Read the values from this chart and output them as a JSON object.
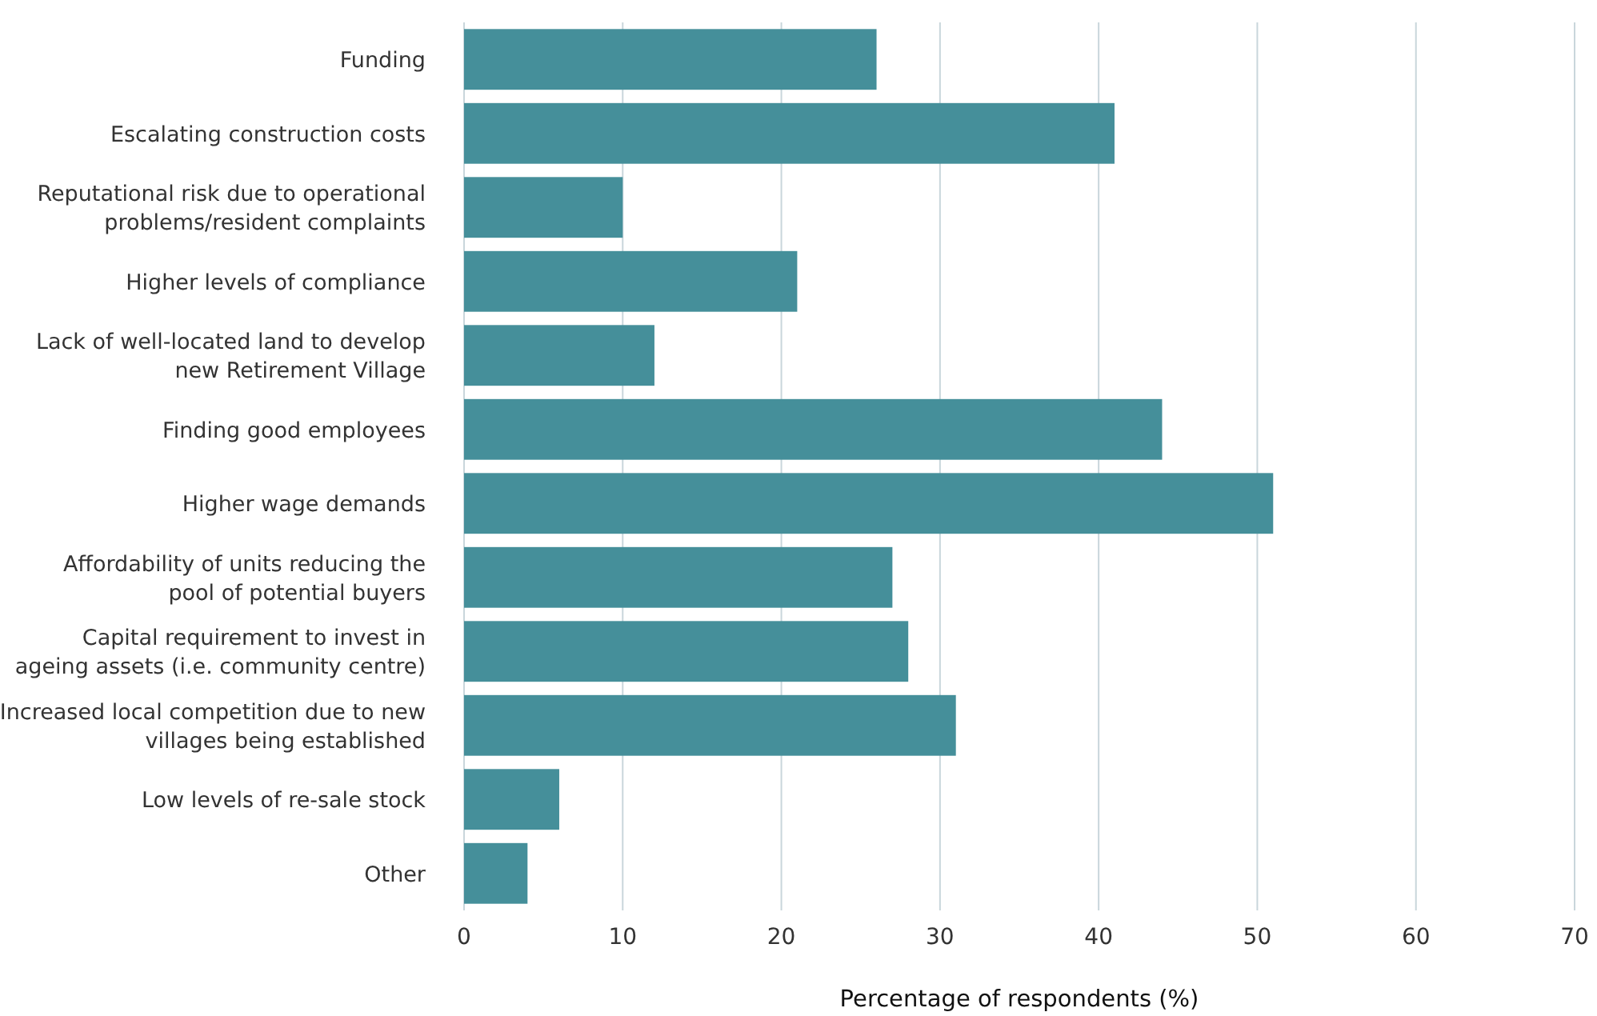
{
  "chart_data": {
    "type": "bar",
    "orientation": "horizontal",
    "xlabel": "Percentage of respondents (%)",
    "categories": [
      "Funding",
      "Escalating construction costs",
      "Reputational risk due to operational problems/resident complaints",
      "Higher levels of compliance",
      "Lack of well-located land to develop new Retirement Village",
      "Finding good employees",
      "Higher wage demands",
      "Affordability of units reducing the pool of potential buyers",
      "Capital requirement to invest in ageing assets (i.e. community centre)",
      "Increased local competition due to new villages being established",
      "Low levels of re-sale stock",
      "Other"
    ],
    "values": [
      26,
      41,
      10,
      21,
      12,
      44,
      51,
      27,
      28,
      31,
      6,
      4
    ],
    "color": "#458f9a",
    "xlim": [
      0,
      70
    ],
    "xticks": [
      0,
      10,
      20,
      30,
      40,
      50,
      60,
      70
    ],
    "grid": "x"
  }
}
